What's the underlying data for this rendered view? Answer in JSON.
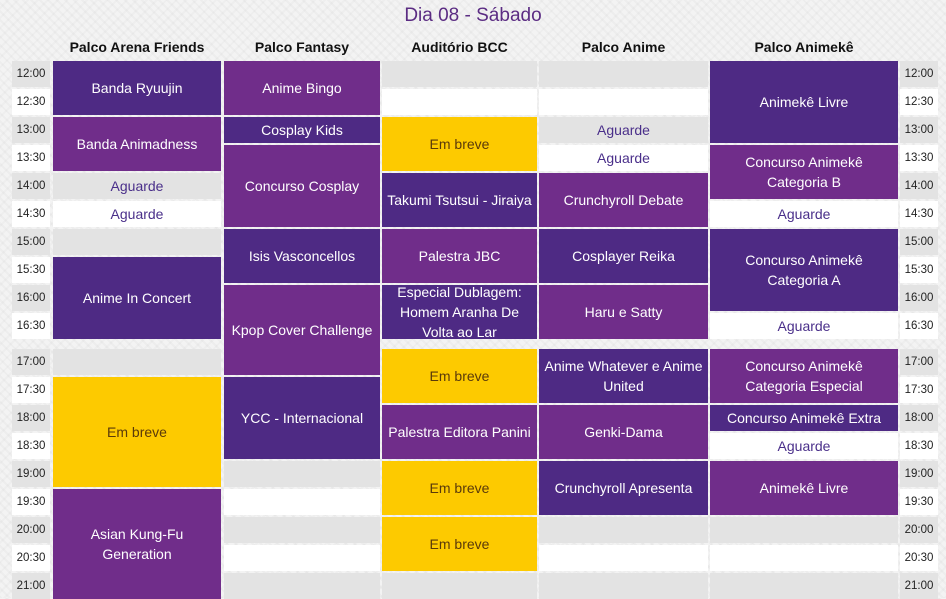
{
  "page": {
    "title": "Dia 08 - Sábado"
  },
  "columns": [
    "Palco Arena Friends",
    "Palco Fantasy",
    "Auditório BCC",
    "Palco Anime",
    "Palco Animekê"
  ],
  "times": [
    "12:00",
    "12:30",
    "13:00",
    "13:30",
    "14:00",
    "14:30",
    "15:00",
    "15:30",
    "16:00",
    "16:30",
    "17:00",
    "17:30",
    "18:00",
    "18:30",
    "19:00",
    "19:30",
    "20:00",
    "20:30",
    "21:00"
  ],
  "events": [
    {
      "col": 0,
      "start": 0,
      "span": 2,
      "label": "Banda Ryuujin",
      "style": "dark"
    },
    {
      "col": 0,
      "start": 2,
      "span": 2,
      "label": "Banda Animadness",
      "style": "purple"
    },
    {
      "col": 0,
      "start": 4,
      "span": 1,
      "label": "Aguarde",
      "style": "wait"
    },
    {
      "col": 0,
      "start": 5,
      "span": 1,
      "label": "Aguarde",
      "style": "wait"
    },
    {
      "col": 0,
      "start": 7,
      "span": 3,
      "label": "Anime In Concert",
      "style": "dark"
    },
    {
      "col": 0,
      "start": 11,
      "span": 4,
      "label": "Em breve",
      "style": "yellow"
    },
    {
      "col": 0,
      "start": 15,
      "span": 4,
      "label": "Asian Kung-Fu Generation",
      "style": "purple"
    },
    {
      "col": 1,
      "start": 0,
      "span": 2,
      "label": "Anime Bingo",
      "style": "purple"
    },
    {
      "col": 1,
      "start": 2,
      "span": 1,
      "label": "Cosplay Kids",
      "style": "dark"
    },
    {
      "col": 1,
      "start": 3,
      "span": 3,
      "label": "Concurso Cosplay",
      "style": "purple"
    },
    {
      "col": 1,
      "start": 6,
      "span": 2,
      "label": "Isis Vasconcellos",
      "style": "dark"
    },
    {
      "col": 1,
      "start": 8,
      "span": 3,
      "label": "Kpop Cover Challenge",
      "style": "purple"
    },
    {
      "col": 1,
      "start": 11,
      "span": 3,
      "label": "YCC - Internacional",
      "style": "dark"
    },
    {
      "col": 2,
      "start": 2,
      "span": 2,
      "label": "Em breve",
      "style": "yellow"
    },
    {
      "col": 2,
      "start": 4,
      "span": 2,
      "label": "Takumi Tsutsui - Jiraiya",
      "style": "dark"
    },
    {
      "col": 2,
      "start": 6,
      "span": 2,
      "label": "Palestra JBC",
      "style": "purple"
    },
    {
      "col": 2,
      "start": 8,
      "span": 2,
      "label": "Especial Dublagem: Homem Aranha De Volta ao Lar",
      "style": "dark"
    },
    {
      "col": 2,
      "start": 10,
      "span": 2,
      "label": "Em breve",
      "style": "yellow"
    },
    {
      "col": 2,
      "start": 12,
      "span": 2,
      "label": "Palestra Editora Panini",
      "style": "purple"
    },
    {
      "col": 2,
      "start": 14,
      "span": 2,
      "label": "Em breve",
      "style": "yellow"
    },
    {
      "col": 2,
      "start": 16,
      "span": 2,
      "label": "Em breve",
      "style": "yellow"
    },
    {
      "col": 3,
      "start": 2,
      "span": 1,
      "label": "Aguarde",
      "style": "wait"
    },
    {
      "col": 3,
      "start": 3,
      "span": 1,
      "label": "Aguarde",
      "style": "wait"
    },
    {
      "col": 3,
      "start": 4,
      "span": 2,
      "label": "Crunchyroll Debate",
      "style": "purple"
    },
    {
      "col": 3,
      "start": 6,
      "span": 2,
      "label": "Cosplayer Reika",
      "style": "dark"
    },
    {
      "col": 3,
      "start": 8,
      "span": 2,
      "label": "Haru e Satty",
      "style": "purple"
    },
    {
      "col": 3,
      "start": 10,
      "span": 2,
      "label": "Anime Whatever e Anime United",
      "style": "dark"
    },
    {
      "col": 3,
      "start": 12,
      "span": 2,
      "label": "Genki-Dama",
      "style": "purple"
    },
    {
      "col": 3,
      "start": 14,
      "span": 2,
      "label": "Crunchyroll Apresenta",
      "style": "dark"
    },
    {
      "col": 4,
      "start": 0,
      "span": 3,
      "label": "Animekê Livre",
      "style": "dark"
    },
    {
      "col": 4,
      "start": 3,
      "span": 2,
      "label": "Concurso Animekê Categoria B",
      "style": "purple"
    },
    {
      "col": 4,
      "start": 5,
      "span": 1,
      "label": "Aguarde",
      "style": "wait"
    },
    {
      "col": 4,
      "start": 6,
      "span": 3,
      "label": "Concurso Animekê Categoria A",
      "style": "dark"
    },
    {
      "col": 4,
      "start": 9,
      "span": 1,
      "label": "Aguarde",
      "style": "wait"
    },
    {
      "col": 4,
      "start": 10,
      "span": 2,
      "label": "Concurso Animekê Categoria Especial",
      "style": "purple"
    },
    {
      "col": 4,
      "start": 12,
      "span": 1,
      "label": "Concurso Animekê Extra",
      "style": "dark"
    },
    {
      "col": 4,
      "start": 13,
      "span": 1,
      "label": "Aguarde",
      "style": "wait"
    },
    {
      "col": 4,
      "start": 14,
      "span": 2,
      "label": "Animekê Livre",
      "style": "purple"
    }
  ]
}
